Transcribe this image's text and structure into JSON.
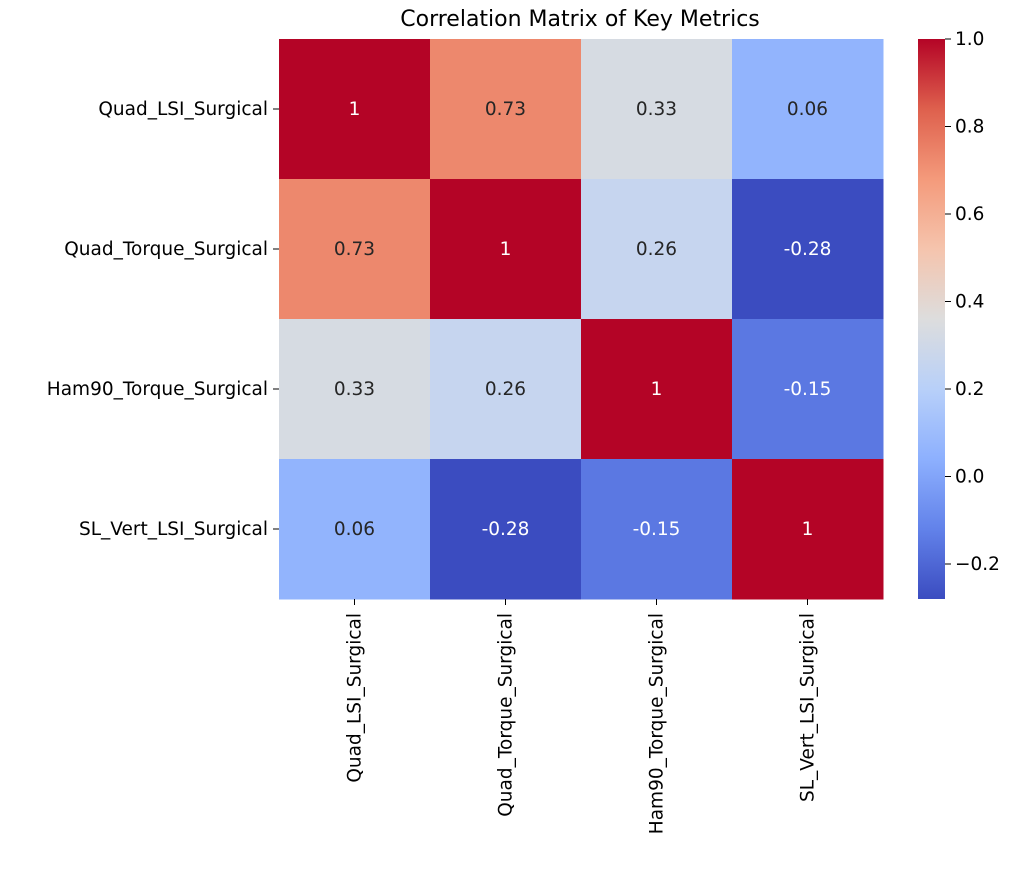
{
  "chart_data": {
    "type": "heatmap",
    "title": "Correlation Matrix of Key Metrics",
    "xlabel": "",
    "ylabel": "",
    "rows": [
      "Quad_LSI_Surgical",
      "Quad_Torque_Surgical",
      "Ham90_Torque_Surgical",
      "SL_Vert_LSI_Surgical"
    ],
    "columns": [
      "Quad_LSI_Surgical",
      "Quad_Torque_Surgical",
      "Ham90_Torque_Surgical",
      "SL_Vert_LSI_Surgical"
    ],
    "values": [
      [
        1,
        0.73,
        0.33,
        0.06
      ],
      [
        0.73,
        1,
        0.26,
        -0.28
      ],
      [
        0.33,
        0.26,
        1,
        -0.15
      ],
      [
        0.06,
        -0.28,
        -0.15,
        1
      ]
    ],
    "annotations": [
      [
        "1",
        "0.73",
        "0.33",
        "0.06"
      ],
      [
        "0.73",
        "1",
        "0.26",
        "-0.28"
      ],
      [
        "0.33",
        "0.26",
        "1",
        "-0.15"
      ],
      [
        "0.06",
        "-0.28",
        "-0.15",
        "1"
      ]
    ],
    "colormap": "coolwarm",
    "vmin": -0.28,
    "vmax": 1.0,
    "colorbar": {
      "ticks": [
        -0.2,
        0.0,
        0.2,
        0.4,
        0.6,
        0.8,
        1.0
      ],
      "tick_labels": [
        "−0.2",
        "0.0",
        "0.2",
        "0.4",
        "0.6",
        "0.8",
        "1.0"
      ],
      "placement": "right"
    },
    "grid": false
  }
}
